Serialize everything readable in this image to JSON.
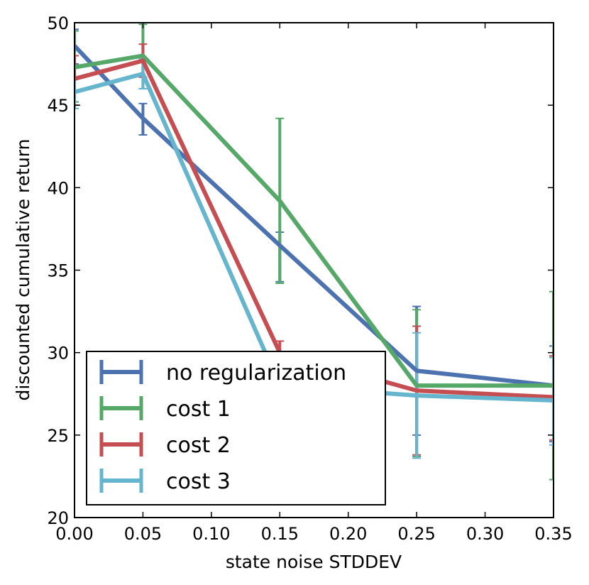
{
  "chart_data": {
    "type": "line",
    "xlabel": "state noise STDDEV",
    "ylabel": "discounted cumulative return",
    "xlim": [
      0.0,
      0.35
    ],
    "ylim": [
      20,
      50
    ],
    "x": [
      0.0,
      0.05,
      0.15,
      0.25,
      0.35
    ],
    "xticks": [
      0.0,
      0.05,
      0.1,
      0.15,
      0.2,
      0.25,
      0.3,
      0.35
    ],
    "xtick_labels": [
      "0.00",
      "0.05",
      "0.10",
      "0.15",
      "0.20",
      "0.25",
      "0.30",
      "0.35"
    ],
    "yticks": [
      20,
      25,
      30,
      35,
      40,
      45,
      50
    ],
    "ytick_labels": [
      "20",
      "25",
      "30",
      "35",
      "40",
      "45",
      "50"
    ],
    "grid": false,
    "legend_position": "lower-left",
    "series": [
      {
        "name": "no regularization",
        "color": "#4c72b0",
        "values": [
          48.6,
          44.2,
          36.5,
          28.9,
          28.0
        ],
        "err_low": [
          47.5,
          43.2,
          34.3,
          25.0,
          24.6
        ],
        "err_high": [
          49.6,
          45.1,
          37.3,
          32.8,
          30.4
        ]
      },
      {
        "name": "cost 1",
        "color": "#55a868",
        "values": [
          47.3,
          48.0,
          39.2,
          28.0,
          28.0
        ],
        "err_low": [
          45.2,
          46.0,
          34.2,
          23.7,
          22.3
        ],
        "err_high": [
          49.5,
          49.9,
          44.2,
          32.6,
          33.7
        ]
      },
      {
        "name": "cost 2",
        "color": "#c44e52",
        "values": [
          46.6,
          47.7,
          30.0,
          27.7,
          27.3
        ],
        "err_low": [
          45.0,
          46.7,
          29.3,
          23.8,
          24.7
        ],
        "err_high": [
          48.0,
          48.7,
          30.7,
          31.6,
          29.8
        ]
      },
      {
        "name": "cost 3",
        "color": "#64b5cd",
        "values": [
          45.8,
          46.9,
          28.0,
          27.4,
          27.1
        ],
        "err_low": [
          44.8,
          46.0,
          27.2,
          23.6,
          24.4
        ],
        "err_high": [
          46.7,
          47.8,
          28.8,
          31.2,
          29.7
        ]
      }
    ]
  }
}
